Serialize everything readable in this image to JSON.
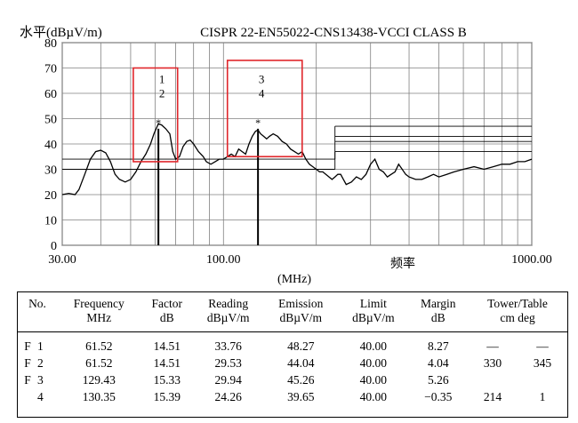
{
  "chart_data": {
    "type": "line",
    "title": "CISPR 22-EN55022-CNS13438-VCCI CLASS B",
    "ylabel": "水平(dBµV/m)",
    "xlabel_unit": "(MHz)",
    "xlabel_cn": "频率",
    "xscale": "log",
    "xlim": [
      30,
      1000
    ],
    "ylim": [
      0,
      80
    ],
    "yticks": [
      "0",
      "10",
      "20",
      "30",
      "40",
      "50",
      "60",
      "70",
      "80"
    ],
    "xtick_labels": [
      "30.00",
      "100.00",
      "1000.00"
    ],
    "grid": true,
    "markers": [
      {
        "x": 61.52,
        "label_a": "1",
        "label_b": "2"
      },
      {
        "x": 129.43,
        "label_a": "3",
        "label_b": "4"
      }
    ],
    "series": [
      {
        "x": [
          30,
          31.5,
          33,
          34,
          35.5,
          37,
          38.5,
          40,
          41.5,
          43,
          44.5,
          46,
          48,
          50,
          52,
          54,
          56,
          58,
          59.5,
          61.5,
          63,
          65,
          67,
          68.5,
          70,
          72,
          74,
          76,
          78,
          80,
          83,
          86,
          88,
          91,
          94,
          97,
          100,
          103,
          106,
          109,
          112,
          115,
          118,
          121,
          124,
          127,
          129.4,
          132,
          135,
          138,
          141,
          145,
          150,
          155,
          160,
          165,
          170,
          175,
          180,
          185,
          190,
          195,
          200,
          205,
          210,
          215,
          220,
          225,
          230,
          235,
          240,
          245,
          250,
          260,
          270,
          280,
          290,
          300,
          310,
          320,
          330,
          340,
          350,
          360,
          370,
          380,
          390,
          400,
          420,
          440,
          460,
          480,
          500,
          530,
          560,
          600,
          650,
          700,
          750,
          800,
          850,
          900,
          950,
          1000
        ],
        "y": [
          20,
          20.5,
          20,
          22,
          28,
          34,
          37,
          37.5,
          36.5,
          33,
          28,
          26,
          25,
          26,
          29,
          33,
          36,
          40,
          44,
          48,
          47.5,
          46,
          44,
          37,
          34,
          35,
          39,
          41,
          41.5,
          40,
          37,
          35,
          33,
          32,
          33,
          34,
          34,
          35,
          36,
          35,
          38,
          37,
          36,
          40,
          43,
          45,
          45.5,
          44,
          43,
          42,
          43,
          44,
          43,
          41,
          40,
          38,
          37,
          36,
          37,
          34,
          32,
          31,
          30,
          29,
          29,
          28,
          27,
          26,
          27,
          28,
          28,
          26,
          24,
          25,
          27,
          26,
          28,
          32,
          34,
          30,
          29,
          27,
          28,
          29,
          32,
          30,
          28,
          27,
          26,
          26,
          27,
          28,
          27,
          28,
          29,
          30,
          31,
          30,
          31,
          32,
          32,
          33,
          33,
          34
        ]
      }
    ],
    "limit_lines": [
      {
        "x": [
          30,
          230
        ],
        "y": [
          30,
          30
        ]
      },
      {
        "x": [
          230,
          1000
        ],
        "y": [
          37,
          37
        ]
      },
      {
        "x": [
          30,
          230
        ],
        "y": [
          34,
          34
        ]
      },
      {
        "x": [
          230,
          1000
        ],
        "y": [
          41,
          41
        ]
      },
      {
        "x": [
          230,
          1000
        ],
        "y": [
          47,
          47
        ]
      },
      {
        "x": [
          230,
          1000
        ],
        "y": [
          43,
          43
        ]
      }
    ],
    "highlight_boxes": [
      {
        "x": [
          51,
          71
        ],
        "y": [
          33,
          70
        ]
      },
      {
        "x": [
          103,
          180
        ],
        "y": [
          35,
          73
        ]
      }
    ]
  },
  "table": {
    "headers": [
      [
        "No.",
        ""
      ],
      [
        "Frequency",
        "MHz"
      ],
      [
        "Factor",
        "dB"
      ],
      [
        "Reading",
        "dBµV/m"
      ],
      [
        "Emission",
        "dBµV/m"
      ],
      [
        "Limit",
        "dBµV/m"
      ],
      [
        "Margin",
        "dB"
      ],
      [
        "Tower/Table",
        "cm   deg"
      ]
    ],
    "rows": [
      {
        "flag": "F",
        "no": "1",
        "freq": "61.52",
        "factor": "14.51",
        "reading": "33.76",
        "emission": "48.27",
        "limit": "40.00",
        "margin": "8.27",
        "tower": "—",
        "table": "—"
      },
      {
        "flag": "F",
        "no": "2",
        "freq": "61.52",
        "factor": "14.51",
        "reading": "29.53",
        "emission": "44.04",
        "limit": "40.00",
        "margin": "4.04",
        "tower": "330",
        "table": "345"
      },
      {
        "flag": "F",
        "no": "3",
        "freq": "129.43",
        "factor": "15.33",
        "reading": "29.94",
        "emission": "45.26",
        "limit": "40.00",
        "margin": "5.26",
        "tower": "",
        "table": ""
      },
      {
        "flag": "",
        "no": "4",
        "freq": "130.35",
        "factor": "15.39",
        "reading": "24.26",
        "emission": "39.65",
        "limit": "40.00",
        "margin": "−0.35",
        "tower": "214",
        "table": "1"
      }
    ]
  }
}
